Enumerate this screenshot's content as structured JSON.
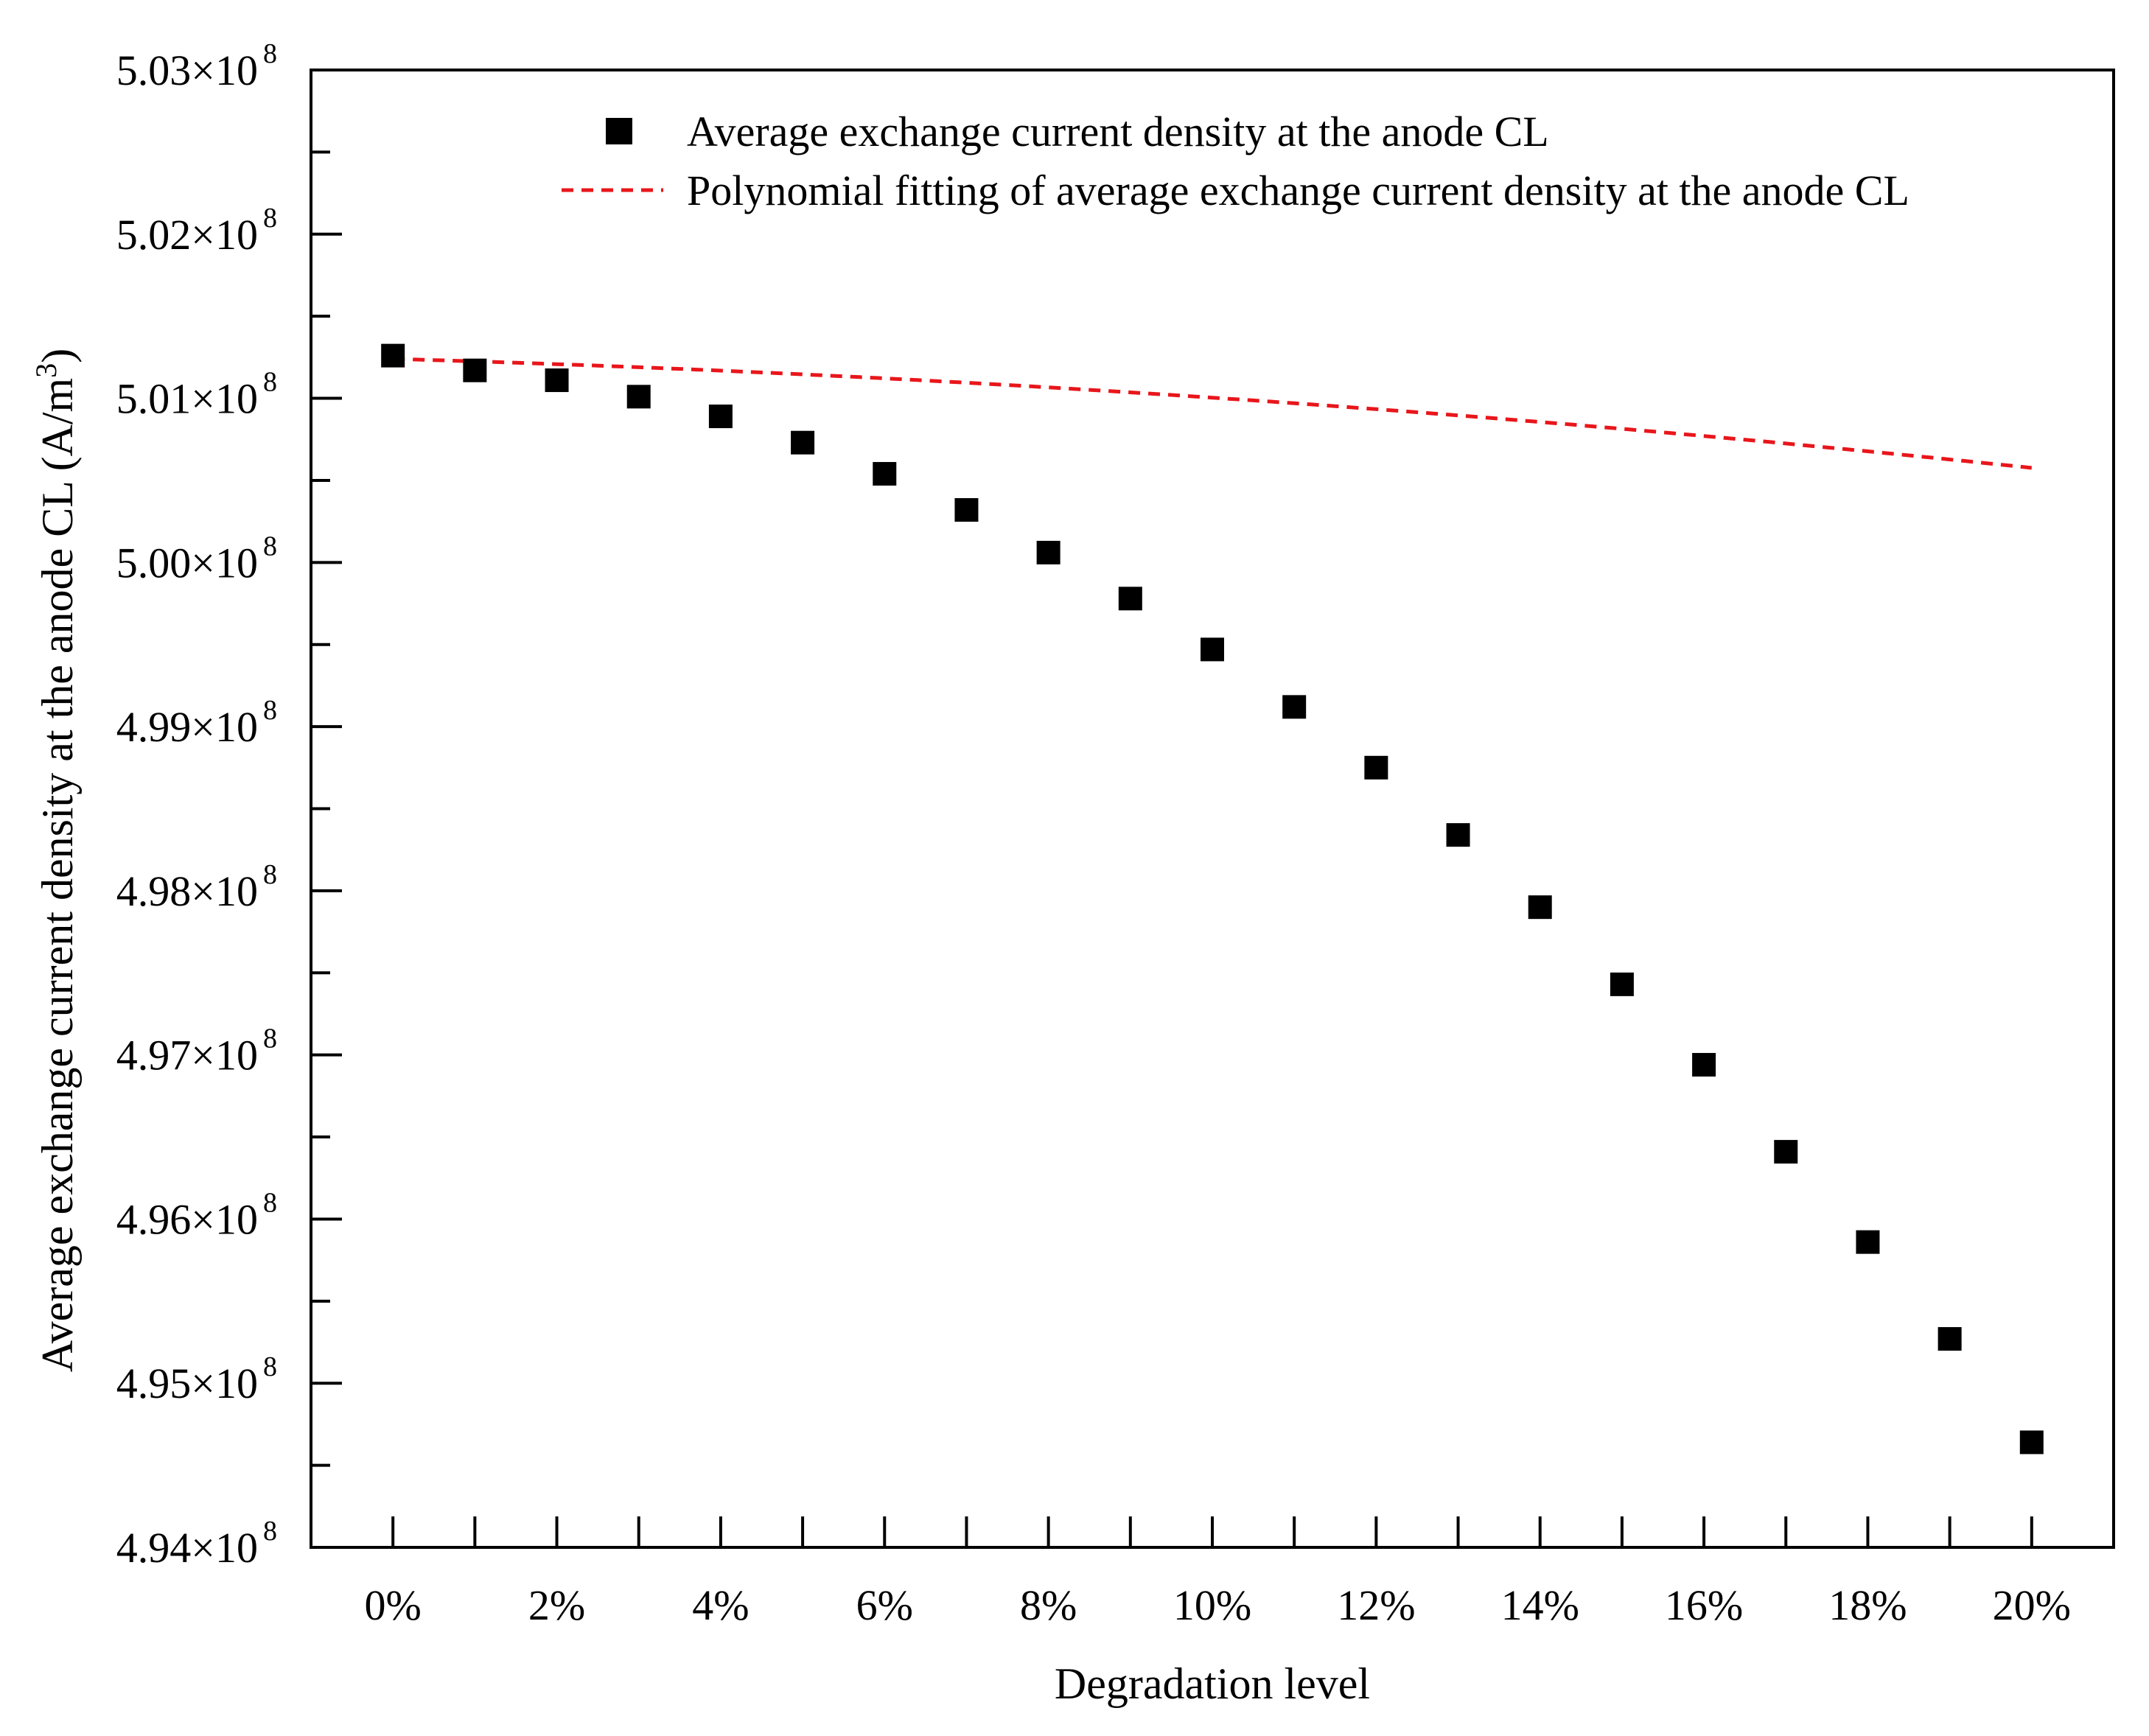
{
  "chart_data": {
    "type": "scatter",
    "title": "",
    "xlabel": "Degradation level",
    "ylabel": "Average exchange current density at the anode CL (A/m",
    "ylabel_sup": "3",
    "ylabel_suffix": ")",
    "xlim": [
      -1,
      21
    ],
    "ylim": [
      4.94,
      5.03
    ],
    "y_exponent_label": "8",
    "x_ticks": [
      0,
      1,
      2,
      3,
      4,
      5,
      6,
      7,
      8,
      9,
      10,
      11,
      12,
      13,
      14,
      15,
      16,
      17,
      18,
      19,
      20
    ],
    "x_tick_labels": [
      {
        "x": 0,
        "label": "0%"
      },
      {
        "x": 2,
        "label": "2%"
      },
      {
        "x": 4,
        "label": "4%"
      },
      {
        "x": 6,
        "label": "6%"
      },
      {
        "x": 8,
        "label": "8%"
      },
      {
        "x": 10,
        "label": "10%"
      },
      {
        "x": 12,
        "label": "12%"
      },
      {
        "x": 14,
        "label": "14%"
      },
      {
        "x": 16,
        "label": "16%"
      },
      {
        "x": 18,
        "label": "18%"
      },
      {
        "x": 20,
        "label": "20%"
      }
    ],
    "y_ticks_minor": [
      4.945,
      4.955,
      4.965,
      4.975,
      4.985,
      4.995,
      5.005,
      5.015,
      5.025
    ],
    "y_tick_labels": [
      {
        "y": 4.94,
        "label": "4.94×10"
      },
      {
        "y": 4.95,
        "label": "4.95×10"
      },
      {
        "y": 4.96,
        "label": "4.96×10"
      },
      {
        "y": 4.97,
        "label": "4.97×10"
      },
      {
        "y": 4.98,
        "label": "4.98×10"
      },
      {
        "y": 4.99,
        "label": "4.99×10"
      },
      {
        "y": 5.0,
        "label": "5.00×10"
      },
      {
        "y": 5.01,
        "label": "5.01×10"
      },
      {
        "y": 5.02,
        "label": "5.02×10"
      },
      {
        "y": 5.03,
        "label": "5.03×10"
      }
    ],
    "legend": {
      "position": "top-right",
      "entries": [
        {
          "name": "Average exchange current density at the anode CL",
          "marker": "square",
          "color": "#000000"
        },
        {
          "name": "Polynomial fitting of average exchange current density at the anode CL",
          "marker": "dashed-line",
          "color": "#e8161b"
        }
      ]
    },
    "series": [
      {
        "name": "Average exchange current density at the anode CL",
        "kind": "scatter",
        "color": "#000000",
        "x": [
          0,
          1,
          2,
          3,
          4,
          5,
          6,
          7,
          8,
          9,
          10,
          11,
          12,
          13,
          14,
          15,
          16,
          17,
          18,
          19,
          20
        ],
        "y": [
          5.0126,
          5.0117,
          5.0111,
          5.0101,
          5.0089,
          5.0073,
          5.0054,
          5.0032,
          5.0006,
          4.9978,
          4.9947,
          4.9912,
          4.9875,
          4.9834,
          4.979,
          4.9743,
          4.9694,
          4.9641,
          4.9586,
          4.9527,
          4.9464
        ]
      },
      {
        "name": "Polynomial fitting of average exchange current density at the anode CL",
        "kind": "line",
        "style": "dashed",
        "color": "#e8161b",
        "polynomial_coefficients": [
          5.0124,
          -0.00014,
          -9.6e-06
        ],
        "x_range": [
          0,
          20
        ]
      }
    ]
  }
}
